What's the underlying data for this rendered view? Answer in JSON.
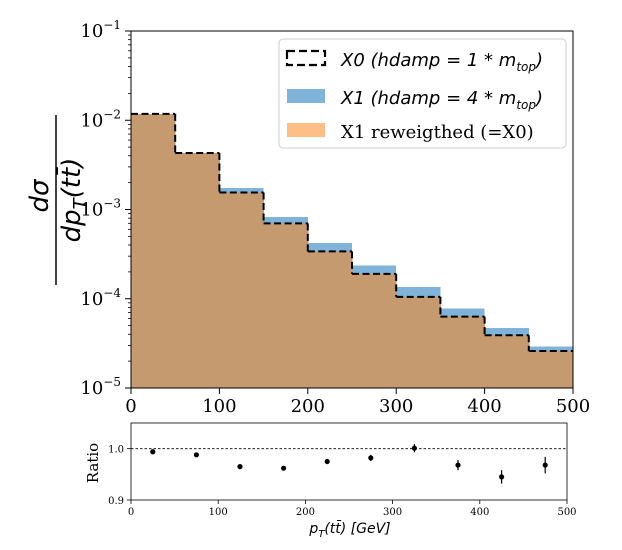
{
  "colors": {
    "x1_fill": "#80b3d9",
    "reweighted_fill": "#c69a6f",
    "x0_line": "#000000",
    "axis": "#000000",
    "background": "#ffffff"
  },
  "chart_data": [
    {
      "type": "histogram",
      "scale_y": "log",
      "bin_edges": [
        0,
        50,
        100,
        150,
        200,
        250,
        300,
        350,
        400,
        450,
        500
      ],
      "xlim": [
        0,
        500
      ],
      "ylim": [
        1e-05,
        0.1
      ],
      "x_ticks": [
        "0",
        "100",
        "200",
        "300",
        "400",
        "500"
      ],
      "x_tick_values": [
        0,
        100,
        200,
        300,
        400,
        500
      ],
      "y_ticks": [
        {
          "value": 1e-05,
          "base": "10",
          "exp": "−5"
        },
        {
          "value": 0.0001,
          "base": "10",
          "exp": "−4"
        },
        {
          "value": 0.001,
          "base": "10",
          "exp": "−3"
        },
        {
          "value": 0.01,
          "base": "10",
          "exp": "−2"
        },
        {
          "value": 0.1,
          "base": "10",
          "exp": "−1"
        }
      ],
      "ylabel_numerator": "dσ",
      "ylabel_denominator": "dp",
      "ylabel_subscript": "T",
      "ylabel_paren": "(tt̄)",
      "series": [
        {
          "name": "X1 (hdamp = 4 * m_top)",
          "style": "filled",
          "values": [
            0.0118,
            0.0043,
            0.00175,
            0.00082,
            0.00042,
            0.000235,
            0.000135,
            7.8e-05,
            4.7e-05,
            2.9e-05
          ]
        },
        {
          "name": "X1 reweigthed (=X0)",
          "style": "filled",
          "values": [
            0.0118,
            0.0043,
            0.00155,
            0.0007,
            0.00034,
            0.00019,
            0.000105,
            6.3e-05,
            3.9e-05,
            2.6e-05
          ]
        },
        {
          "name": "X0 (hdamp = 1 * m_top)",
          "style": "dashed-step",
          "values": [
            0.0118,
            0.0043,
            0.00155,
            0.0007,
            0.00034,
            0.00019,
            0.000105,
            6.3e-05,
            3.9e-05,
            2.6e-05
          ]
        }
      ],
      "legend": {
        "placement": "top-right",
        "entries": [
          {
            "prefix": "X0 (hdamp = 1 * m",
            "sub": "top",
            "suffix": ")"
          },
          {
            "prefix": "X1 (hdamp = 4 * m",
            "sub": "top",
            "suffix": ")"
          },
          {
            "prefix": "X1 reweigthed (=X0)",
            "sub": "",
            "suffix": ""
          }
        ]
      }
    },
    {
      "type": "scatter",
      "subtitle": "ratio panel",
      "x": [
        25,
        75,
        125,
        175,
        225,
        275,
        325,
        375,
        425,
        475
      ],
      "y": [
        0.994,
        0.988,
        0.965,
        0.962,
        0.975,
        0.982,
        1.001,
        0.968,
        0.945,
        0.968
      ],
      "yerr": [
        0.002,
        0.003,
        0.004,
        0.004,
        0.005,
        0.006,
        0.008,
        0.01,
        0.013,
        0.016
      ],
      "xlim": [
        0,
        500
      ],
      "ylim": [
        0.9,
        1.05
      ],
      "reference_line": 1.0,
      "x_ticks": [
        "0",
        "100",
        "200",
        "300",
        "400",
        "500"
      ],
      "x_tick_values": [
        0,
        100,
        200,
        300,
        400,
        500
      ],
      "y_ticks": [
        "0.9",
        "1.0"
      ],
      "y_tick_values": [
        0.9,
        1.0
      ],
      "ylabel": "Ratio",
      "xlabel_p": "p",
      "xlabel_sub": "T",
      "xlabel_rest": "(tt̄) [GeV]"
    }
  ]
}
